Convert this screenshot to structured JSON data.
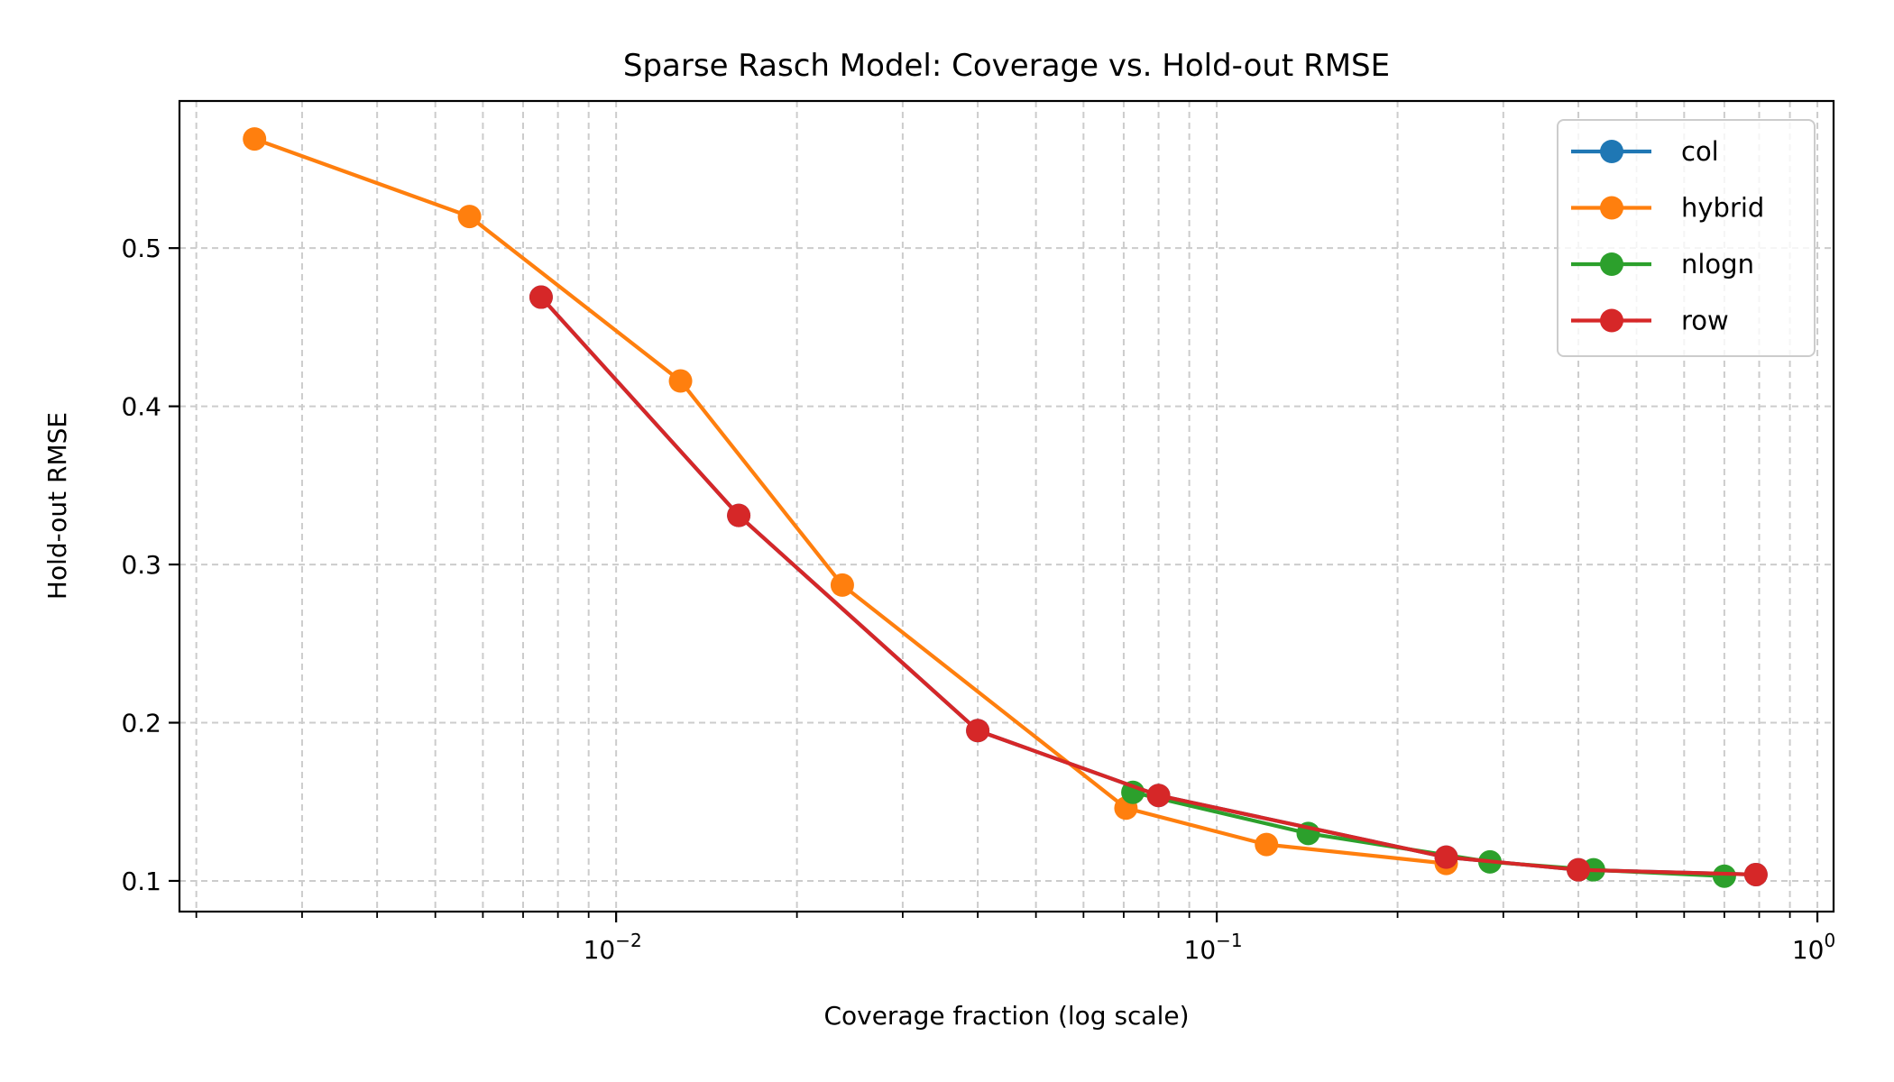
{
  "chart_data": {
    "type": "line",
    "title": "Sparse Rasch Model: Coverage vs. Hold-out RMSE",
    "xlabel": "Coverage fraction (log scale)",
    "ylabel": "Hold-out RMSE",
    "xscale": "log",
    "xlim": [
      0.001875,
      1.064
    ],
    "ylim": [
      0.0806,
      0.593
    ],
    "grid": true,
    "grid_style": "dashed, major and minor",
    "legend_position": "top-right",
    "x_major_ticks": [
      0.01,
      0.1,
      1
    ],
    "x_major_tick_labels": [
      {
        "base": "10",
        "exp": "−2"
      },
      {
        "base": "10",
        "exp": "−1"
      },
      {
        "base": "10",
        "exp": "0"
      }
    ],
    "y_ticks": [
      0.1,
      0.2,
      0.3,
      0.4,
      0.5
    ],
    "y_tick_labels": [
      "0.1",
      "0.2",
      "0.3",
      "0.4",
      "0.5"
    ],
    "series": [
      {
        "name": "col",
        "color": "#1f77b4",
        "marker": "circle",
        "x": [
          0.0075,
          0.016,
          0.04,
          0.08,
          0.241,
          0.4,
          0.79
        ],
        "y": [
          0.469,
          0.331,
          0.195,
          0.154,
          0.115,
          0.107,
          0.104
        ]
      },
      {
        "name": "hybrid",
        "color": "#ff7f0e",
        "marker": "circle",
        "x": [
          0.0025,
          0.0057,
          0.0128,
          0.0238,
          0.0706,
          0.121,
          0.241
        ],
        "y": [
          0.569,
          0.52,
          0.416,
          0.287,
          0.146,
          0.123,
          0.111
        ]
      },
      {
        "name": "nlogn",
        "color": "#2ca02c",
        "marker": "circle",
        "x": [
          0.0725,
          0.142,
          0.285,
          0.424,
          0.7
        ],
        "y": [
          0.156,
          0.13,
          0.112,
          0.107,
          0.103
        ]
      },
      {
        "name": "row",
        "color": "#d62728",
        "marker": "circle",
        "x": [
          0.0075,
          0.016,
          0.04,
          0.08,
          0.241,
          0.4,
          0.79
        ],
        "y": [
          0.469,
          0.331,
          0.195,
          0.154,
          0.115,
          0.107,
          0.104
        ]
      }
    ]
  }
}
